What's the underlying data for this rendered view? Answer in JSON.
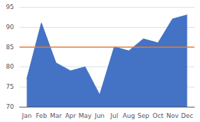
{
  "chart_data": {
    "type": "area",
    "categories": [
      "Jan",
      "Feb",
      "Mar",
      "Apr",
      "May",
      "Jun",
      "Jul",
      "Aug",
      "Sep",
      "Oct",
      "Nov",
      "Dec"
    ],
    "values": [
      77,
      91,
      81,
      79,
      80,
      73,
      85,
      84,
      87,
      86,
      92,
      93
    ],
    "color": "#4472C4",
    "benchmark": {
      "value": 85,
      "color": "#ED7D31"
    },
    "ylim": [
      70,
      95
    ],
    "yticks": [
      70,
      75,
      80,
      85,
      90,
      95
    ],
    "grid": true
  }
}
